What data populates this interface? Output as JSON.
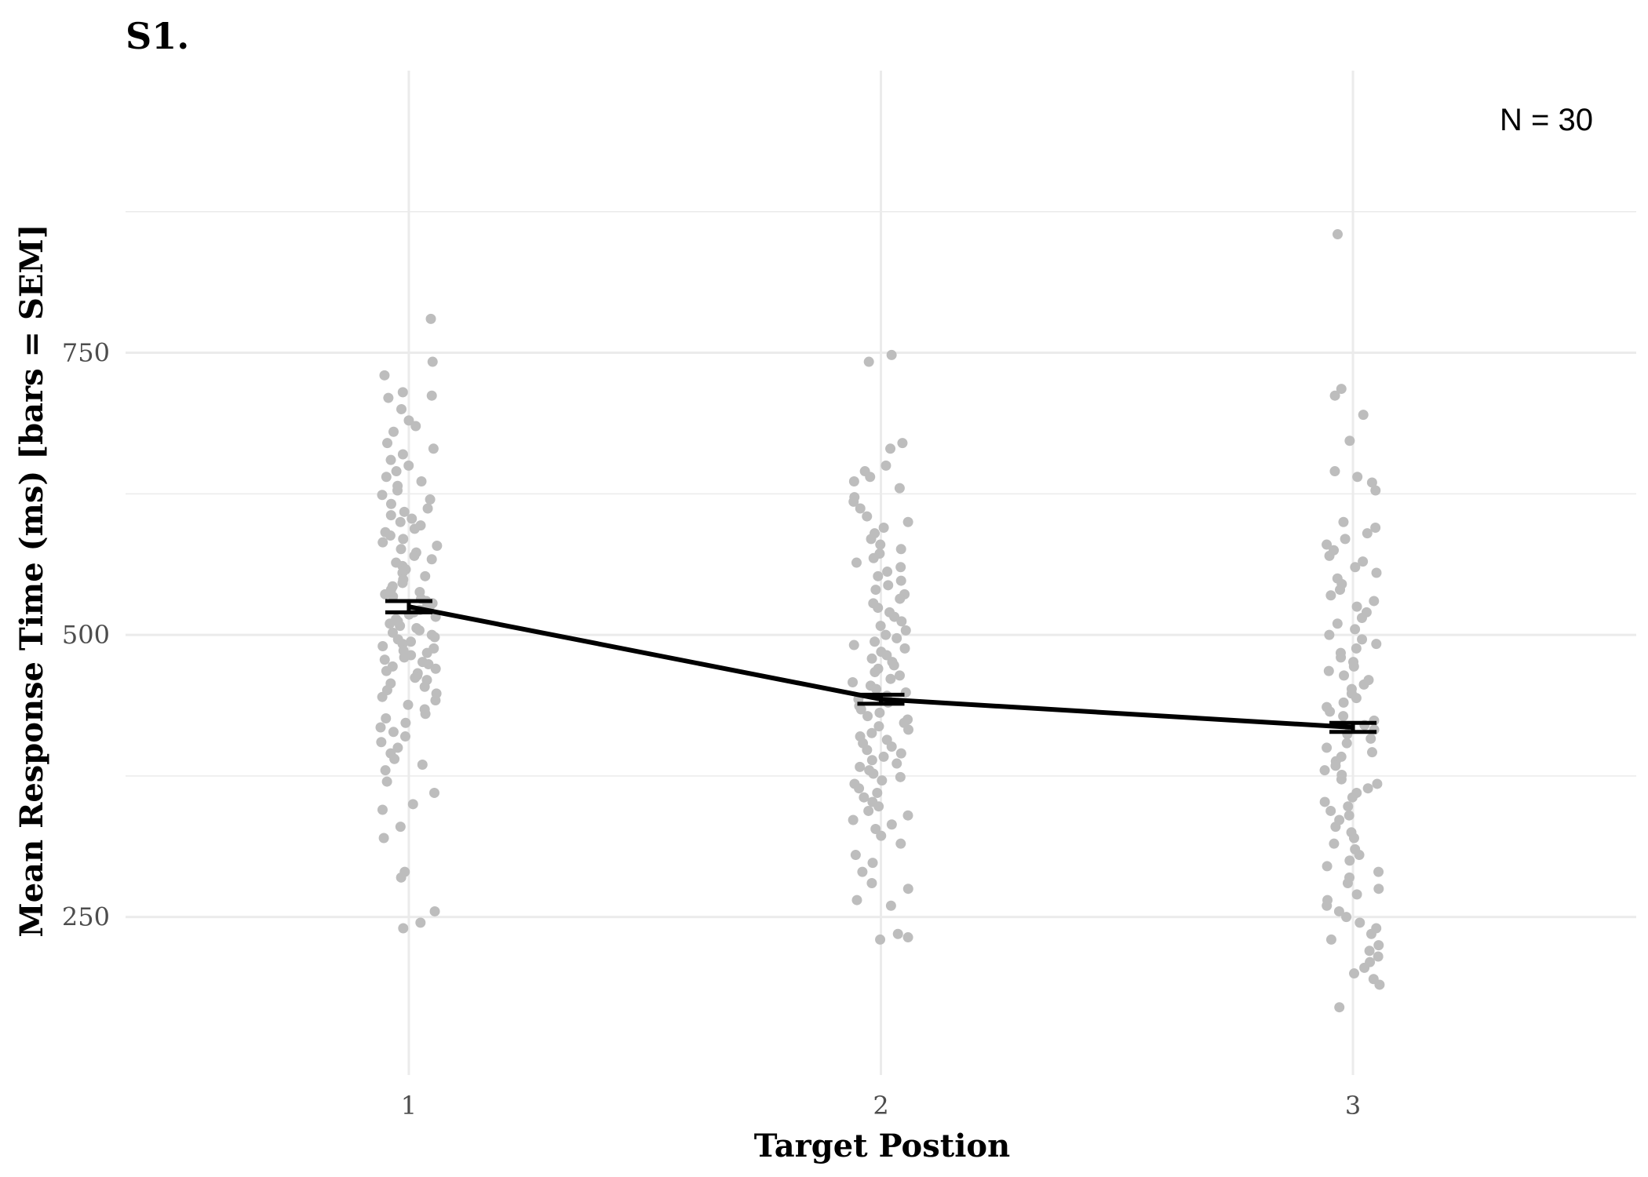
{
  "chart_data": {
    "type": "scatter",
    "panel_label": "S1.",
    "xlabel": "Target Postion",
    "ylabel": "Mean Response Time (ms) [bars = SEM]",
    "annotation": "N = 30",
    "categories": [
      "1",
      "2",
      "3"
    ],
    "x_range": [
      0.4,
      3.6
    ],
    "ylim": [
      110,
      1000
    ],
    "y_ticks": [
      250,
      500,
      750
    ],
    "y_minor_gridlines": [
      375,
      625,
      875
    ],
    "grid": true,
    "colors": {
      "points": "#bdbdbd",
      "line": "#000000",
      "grid": "#ebebeb",
      "text": "#4d4d4d"
    },
    "mean_line": {
      "x": [
        1,
        2,
        3
      ],
      "y": [
        525,
        443,
        418
      ],
      "sem": [
        5,
        4,
        4
      ]
    },
    "points": [
      {
        "x": 1,
        "y": [
          780,
          742,
          730,
          715,
          712,
          710,
          700,
          690,
          685,
          680,
          670,
          665,
          660,
          655,
          650,
          645,
          640,
          636,
          632,
          628,
          624,
          620,
          616,
          612,
          609,
          606,
          603,
          600,
          597,
          594,
          591,
          588,
          585,
          582,
          579,
          576,
          573,
          570,
          567,
          564,
          561,
          558,
          555,
          552,
          549,
          546,
          543,
          540,
          538,
          536,
          534,
          532,
          530,
          528,
          526,
          524,
          522,
          520,
          518,
          516,
          514,
          512,
          510,
          508,
          506,
          504,
          502,
          500,
          498,
          496,
          494,
          492,
          490,
          488,
          486,
          484,
          482,
          480,
          478,
          476,
          474,
          472,
          470,
          468,
          466,
          464,
          462,
          460,
          457,
          454,
          451,
          448,
          445,
          442,
          438,
          434,
          430,
          426,
          422,
          418,
          414,
          410,
          405,
          400,
          395,
          390,
          385,
          380,
          370,
          360,
          350,
          345,
          330,
          320,
          290,
          285,
          255,
          245,
          240
        ]
      },
      {
        "x": 2,
        "y": [
          748,
          742,
          670,
          665,
          650,
          645,
          640,
          636,
          630,
          622,
          618,
          612,
          605,
          600,
          595,
          590,
          585,
          580,
          576,
          572,
          568,
          564,
          560,
          556,
          552,
          548,
          544,
          540,
          536,
          532,
          528,
          524,
          520,
          516,
          512,
          508,
          504,
          500,
          497,
          494,
          491,
          488,
          485,
          482,
          479,
          476,
          473,
          470,
          467,
          464,
          461,
          458,
          455,
          452,
          449,
          446,
          443,
          440,
          437,
          434,
          431,
          428,
          425,
          422,
          419,
          416,
          413,
          410,
          407,
          404,
          401,
          398,
          395,
          392,
          389,
          386,
          383,
          380,
          377,
          374,
          371,
          368,
          364,
          360,
          356,
          352,
          348,
          344,
          340,
          336,
          332,
          328,
          322,
          315,
          305,
          298,
          290,
          280,
          275,
          265,
          260,
          235,
          232,
          230
        ]
      },
      {
        "x": 3,
        "y": [
          855,
          718,
          712,
          695,
          672,
          645,
          640,
          635,
          628,
          600,
          595,
          590,
          585,
          580,
          575,
          570,
          565,
          560,
          555,
          550,
          545,
          540,
          535,
          530,
          525,
          520,
          515,
          510,
          505,
          500,
          496,
          492,
          488,
          484,
          480,
          476,
          472,
          468,
          464,
          460,
          456,
          452,
          448,
          444,
          440,
          436,
          432,
          428,
          424,
          420,
          416,
          412,
          408,
          404,
          400,
          396,
          392,
          388,
          384,
          380,
          376,
          372,
          368,
          364,
          360,
          356,
          352,
          348,
          344,
          340,
          336,
          330,
          325,
          320,
          315,
          310,
          305,
          300,
          295,
          290,
          285,
          280,
          275,
          270,
          265,
          260,
          255,
          250,
          245,
          240,
          235,
          230,
          225,
          220,
          215,
          210,
          205,
          200,
          195,
          190,
          170
        ]
      }
    ]
  }
}
